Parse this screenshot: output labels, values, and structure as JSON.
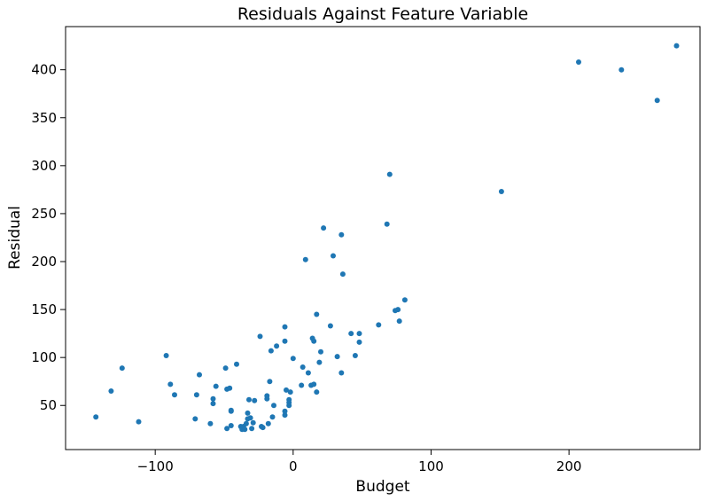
{
  "chart_data": {
    "type": "scatter",
    "title": "Residuals Against Feature Variable",
    "xlabel": "Budget",
    "ylabel": "Residual",
    "xlim": [
      -165,
      295
    ],
    "ylim": [
      4,
      445
    ],
    "xticks": [
      -100,
      0,
      100,
      200
    ],
    "xtick_labels": [
      "−100",
      "0",
      "100",
      "200"
    ],
    "yticks": [
      50,
      100,
      150,
      200,
      250,
      300,
      350,
      400
    ],
    "ytick_labels": [
      "50",
      "100",
      "150",
      "200",
      "250",
      "300",
      "350",
      "400"
    ],
    "grid": false,
    "point_color": "#1f77b4",
    "series": [
      {
        "points": [
          [
            -143,
            38
          ],
          [
            -132,
            65
          ],
          [
            -124,
            89
          ],
          [
            -112,
            33
          ],
          [
            -92,
            102
          ],
          [
            -89,
            72
          ],
          [
            -86,
            61
          ],
          [
            -71,
            36
          ],
          [
            -70,
            61
          ],
          [
            -68,
            82
          ],
          [
            -60,
            31
          ],
          [
            -58,
            57
          ],
          [
            -58,
            52
          ],
          [
            -56,
            70
          ],
          [
            -49,
            89
          ],
          [
            -48,
            67
          ],
          [
            -48,
            26
          ],
          [
            -46,
            68
          ],
          [
            -45,
            29
          ],
          [
            -45,
            45
          ],
          [
            -45,
            44
          ],
          [
            -41,
            93
          ],
          [
            -38,
            28
          ],
          [
            -37,
            25
          ],
          [
            -36,
            28
          ],
          [
            -35,
            25
          ],
          [
            -34,
            31
          ],
          [
            -33,
            42
          ],
          [
            -33,
            36
          ],
          [
            -32,
            56
          ],
          [
            -31,
            37
          ],
          [
            -30,
            26
          ],
          [
            -29,
            32
          ],
          [
            -28,
            55
          ],
          [
            -24,
            122
          ],
          [
            -23,
            28
          ],
          [
            -22,
            27
          ],
          [
            -19,
            60
          ],
          [
            -19,
            57
          ],
          [
            -18,
            31
          ],
          [
            -17,
            75
          ],
          [
            -16,
            107
          ],
          [
            -15,
            38
          ],
          [
            -14,
            50
          ],
          [
            -12,
            112
          ],
          [
            -6,
            132
          ],
          [
            -6,
            117
          ],
          [
            -6,
            44
          ],
          [
            -6,
            40
          ],
          [
            -5,
            66
          ],
          [
            -3,
            56
          ],
          [
            -3,
            53
          ],
          [
            -3,
            50
          ],
          [
            -2,
            64
          ],
          [
            0,
            99
          ],
          [
            6,
            71
          ],
          [
            7,
            90
          ],
          [
            9,
            202
          ],
          [
            11,
            84
          ],
          [
            13,
            71
          ],
          [
            14,
            120
          ],
          [
            15,
            117
          ],
          [
            15,
            72
          ],
          [
            17,
            145
          ],
          [
            17,
            64
          ],
          [
            19,
            95
          ],
          [
            20,
            106
          ],
          [
            22,
            235
          ],
          [
            27,
            133
          ],
          [
            29,
            206
          ],
          [
            32,
            101
          ],
          [
            35,
            228
          ],
          [
            35,
            84
          ],
          [
            36,
            187
          ],
          [
            42,
            125
          ],
          [
            45,
            102
          ],
          [
            48,
            116
          ],
          [
            48,
            125
          ],
          [
            62,
            134
          ],
          [
            68,
            239
          ],
          [
            70,
            291
          ],
          [
            74,
            149
          ],
          [
            76,
            150
          ],
          [
            77,
            138
          ],
          [
            81,
            160
          ],
          [
            151,
            273
          ],
          [
            207,
            408
          ],
          [
            238,
            400
          ],
          [
            264,
            368
          ],
          [
            278,
            425
          ]
        ]
      }
    ]
  }
}
